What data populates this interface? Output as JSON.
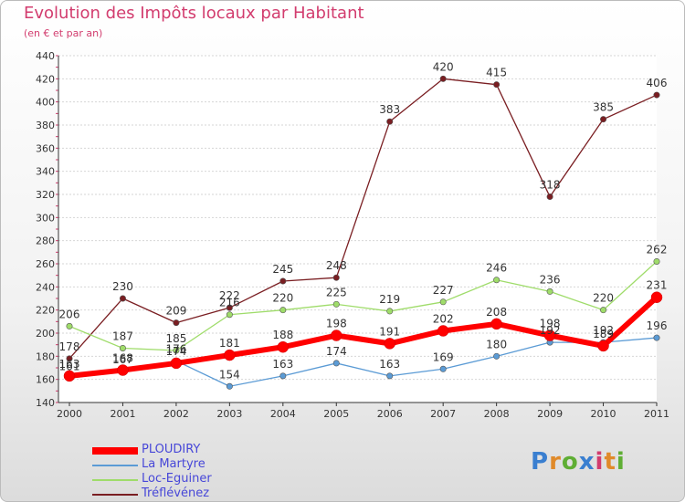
{
  "chart_data": {
    "type": "line",
    "title": "Evolution des Impôts locaux par Habitant",
    "subtitle": "(en € et par an)",
    "xlabel": "",
    "ylabel": "",
    "categories": [
      "2000",
      "2001",
      "2002",
      "2003",
      "2004",
      "2005",
      "2006",
      "2007",
      "2008",
      "2009",
      "2010",
      "2011"
    ],
    "ylim": [
      140,
      440
    ],
    "yticks": [
      140,
      160,
      180,
      200,
      220,
      240,
      260,
      280,
      300,
      320,
      340,
      360,
      380,
      400,
      420,
      440
    ],
    "grid": "horizontal",
    "legend": "bottom-left",
    "series": [
      {
        "name": "Tréflévénez",
        "color": "#7a1e22",
        "values": [
          178,
          230,
          209,
          222,
          245,
          248,
          383,
          420,
          415,
          318,
          385,
          406
        ]
      },
      {
        "name": "Loc-Eguiner",
        "color": "#9fdc6a",
        "values": [
          206,
          187,
          185,
          216,
          220,
          225,
          219,
          227,
          246,
          236,
          220,
          262
        ]
      },
      {
        "name": "La Martyre",
        "color": "#5b9bd5",
        "values": [
          161,
          167,
          176,
          154,
          163,
          174,
          163,
          169,
          180,
          192,
          192,
          196
        ]
      },
      {
        "name": "PLOUDIRY",
        "color": "#ff0000",
        "values": [
          163,
          168,
          174,
          181,
          188,
          198,
          191,
          202,
          208,
          198,
          189,
          231
        ]
      }
    ]
  },
  "legend": {
    "items": [
      {
        "label": "PLOUDIRY",
        "color": "#ff0000"
      },
      {
        "label": "La Martyre",
        "color": "#5b9bd5"
      },
      {
        "label": "Loc-Eguiner",
        "color": "#9fdc6a"
      },
      {
        "label": "Tréflévénez",
        "color": "#7a1e22"
      }
    ]
  },
  "logo": {
    "letters": [
      "P",
      "r",
      "o",
      "x",
      "i",
      "t",
      "i"
    ],
    "colors": [
      "#3a7fd0",
      "#e08a2a",
      "#5fae34",
      "#3a7fd0",
      "#d23c6e",
      "#e08a2a",
      "#5fae34"
    ]
  }
}
